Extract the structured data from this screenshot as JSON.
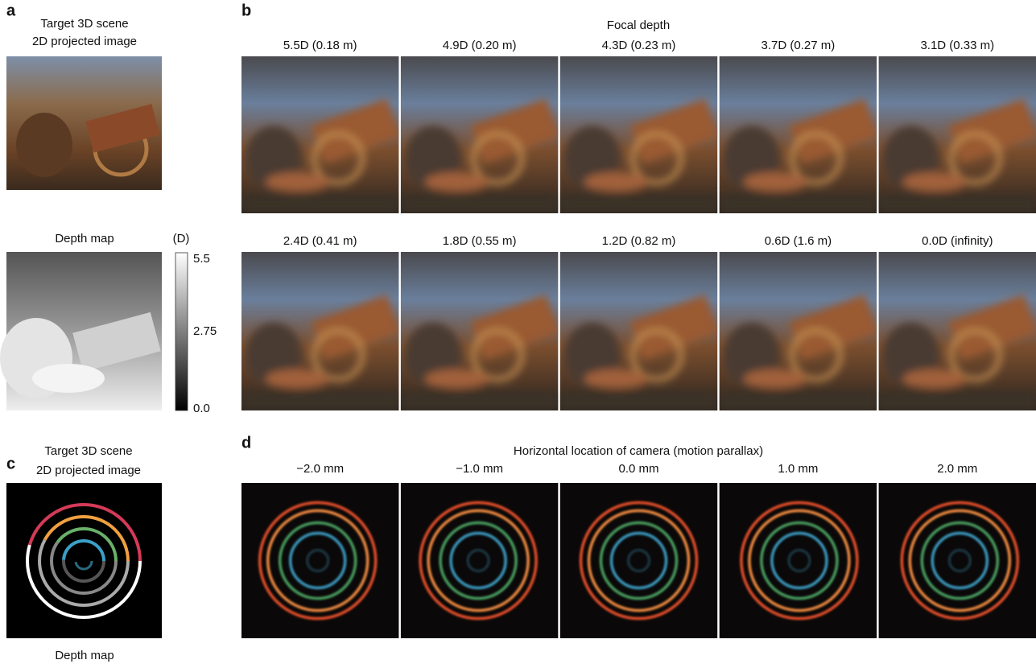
{
  "panel_a": {
    "letter": "a",
    "title_lines": [
      "Target 3D scene",
      "2D projected image"
    ],
    "depth_map_title": "Depth map",
    "colorbar": {
      "unit": "(D)",
      "ticks": [
        "5.5",
        "2.75",
        "0.0"
      ]
    }
  },
  "panel_b": {
    "letter": "b",
    "title": "Focal depth",
    "labels": [
      "5.5D (0.18 m)",
      "4.9D (0.20 m)",
      "4.3D (0.23 m)",
      "3.7D (0.27 m)",
      "3.1D (0.33 m)",
      "2.4D (0.41 m)",
      "1.8D (0.55 m)",
      "1.2D (0.82 m)",
      "0.6D (1.6 m)",
      "0.0D (infinity)"
    ]
  },
  "panel_c": {
    "letter": "c",
    "title_lines": [
      "Target 3D scene",
      "2D projected image"
    ],
    "caption": "Depth map"
  },
  "panel_d": {
    "letter": "d",
    "title": "Horizontal location of camera (motion parallax)",
    "labels": [
      "−2.0 mm",
      "−1.0 mm",
      "0.0 mm",
      "1.0 mm",
      "2.0 mm"
    ]
  }
}
